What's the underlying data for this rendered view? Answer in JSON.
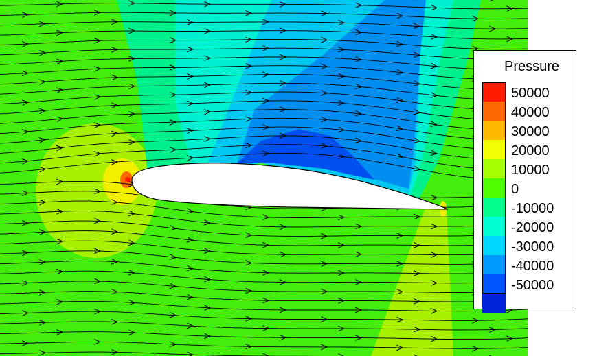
{
  "legend": {
    "title": "Pressure",
    "entries": [
      {
        "label": "50000",
        "color": "#ff1a00"
      },
      {
        "label": "40000",
        "color": "#ff6a00"
      },
      {
        "label": "30000",
        "color": "#ffba00"
      },
      {
        "label": "20000",
        "color": "#f2ff00"
      },
      {
        "label": "10000",
        "color": "#a6ff00"
      },
      {
        "label": "0",
        "color": "#4dff00"
      },
      {
        "label": "-10000",
        "color": "#00ff8c"
      },
      {
        "label": "-20000",
        "color": "#00ffd2"
      },
      {
        "label": "-30000",
        "color": "#00d9ff"
      },
      {
        "label": "-40000",
        "color": "#0099ff"
      },
      {
        "label": "-50000",
        "color": "#0055ff"
      },
      {
        "label": "",
        "color": "#0022d8"
      }
    ]
  },
  "field_colors": {
    "background": "#44ee0c",
    "stagnation_outer": "#a6f000",
    "stagnation_inner": "#f2f000",
    "stagnation_core": "#ff6a00",
    "stagnation_point": "#ff1a00",
    "suction_light": "#00f08c",
    "suction_mid": "#00f0d2",
    "suction_deep": "#00c8f0",
    "suction_deeper": "#008ff0",
    "suction_core": "#0050f0",
    "streamline": "#000000",
    "airfoil": "#ffffff"
  }
}
